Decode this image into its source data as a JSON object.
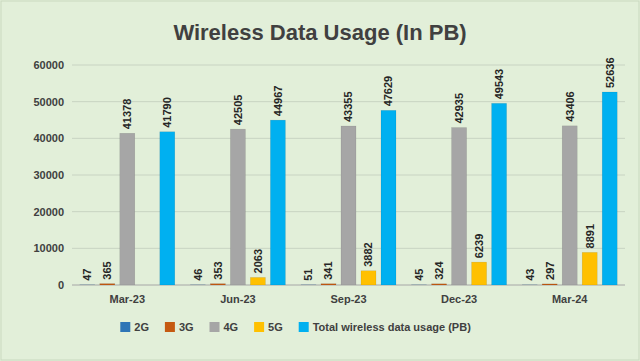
{
  "chart_data": {
    "type": "bar",
    "title": "Wireless Data Usage (In PB)",
    "categories": [
      "Mar-23",
      "Jun-23",
      "Sep-23",
      "Dec-23",
      "Mar-24"
    ],
    "series": [
      {
        "name": "2G",
        "color": "#2e75b6",
        "values": [
          47,
          46,
          51,
          45,
          43
        ]
      },
      {
        "name": "3G",
        "color": "#c55a11",
        "values": [
          365,
          353,
          341,
          324,
          297
        ]
      },
      {
        "name": "4G",
        "color": "#a6a6a6",
        "values": [
          41378,
          42505,
          43355,
          42935,
          43406
        ]
      },
      {
        "name": "5G",
        "color": "#ffc000",
        "values": [
          null,
          2063,
          3882,
          6239,
          8891
        ]
      },
      {
        "name": "Total wireless data usage (PB)",
        "color": "#00b0f0",
        "values": [
          41790,
          44967,
          47629,
          49543,
          52636
        ]
      }
    ],
    "ylim": [
      0,
      60000
    ],
    "yticks": [
      0,
      10000,
      20000,
      30000,
      40000,
      50000,
      60000
    ],
    "grid": true,
    "data_labels": true,
    "legend": "bottom"
  }
}
